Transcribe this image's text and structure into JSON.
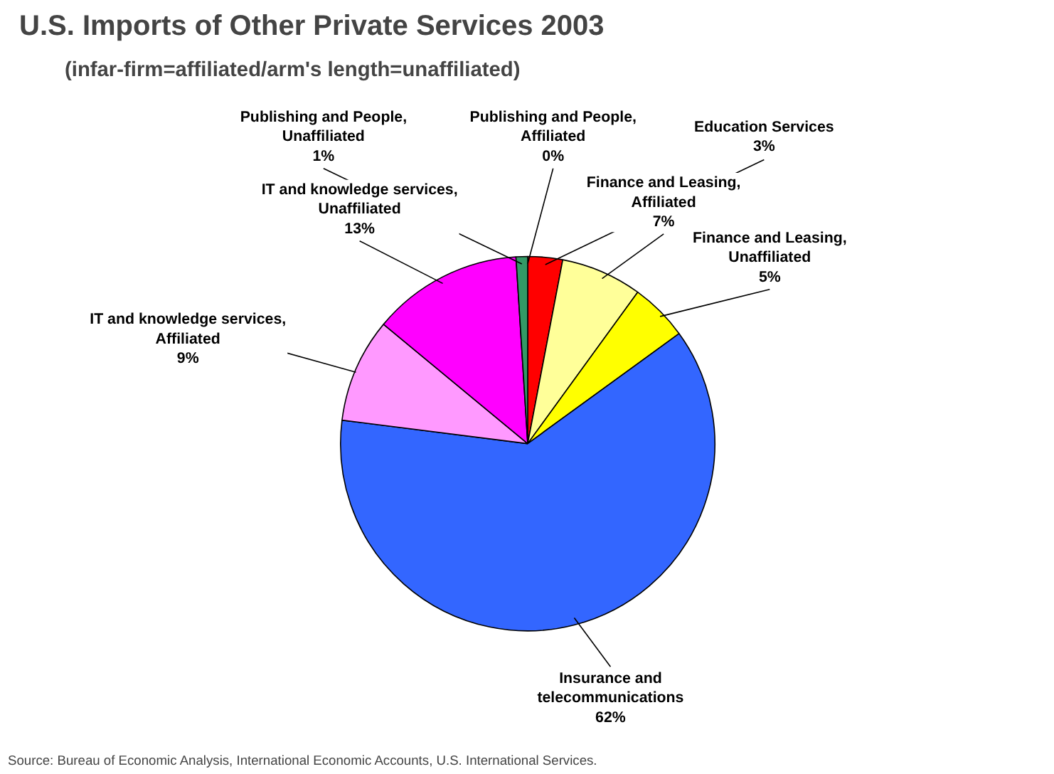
{
  "chart_data": {
    "type": "pie",
    "title": "U.S. Imports of Other Private Services 2003",
    "subtitle": "(infar-firm=affiliated/arm's length=unaffiliated)",
    "categories": [
      "Publishing and People,\nAffiliated",
      "Education Services",
      "Finance and Leasing,\nAffiliated",
      "Finance and Leasing,\nUnaffiliated",
      "Insurance and\ntelecommunications",
      "IT and knowledge services,\nAffiliated",
      "IT and knowledge services,\nUnaffiliated",
      "Publishing and People,\nUnaffiliated"
    ],
    "values": [
      0,
      3,
      7,
      5,
      62,
      9,
      13,
      1
    ],
    "value_labels": [
      "0%",
      "3%",
      "7%",
      "5%",
      "62%",
      "9%",
      "13%",
      "1%"
    ],
    "colors": [
      "#000080",
      "#ff0000",
      "#ffff99",
      "#ffff00",
      "#3366ff",
      "#ff99ff",
      "#ff00ff",
      "#339966"
    ],
    "annotations": [
      "Source: Bureau of Economic Analysis, International Economic Accounts, U.S. International Services."
    ]
  }
}
